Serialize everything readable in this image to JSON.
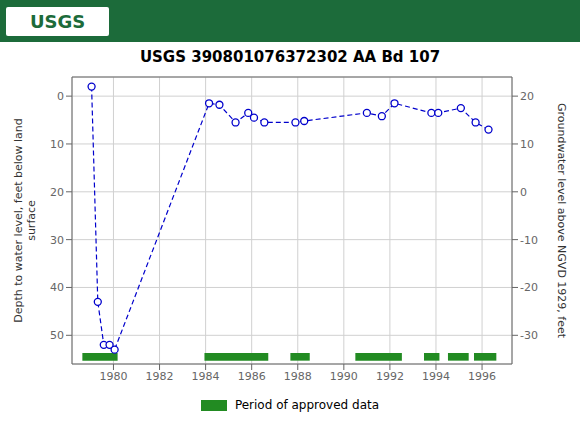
{
  "chart_data": {
    "type": "line",
    "title": "USGS 390801076372302 AA Bd 107",
    "annotations": [
      "USGS"
    ],
    "ylabel": "Depth to water level, feet below land\nsurface",
    "y2label": "Groundwater level above NGVD 1929, feet",
    "x": [
      1979.05,
      1979.32,
      1979.58,
      1979.83,
      1980.05,
      1984.15,
      1984.6,
      1985.3,
      1985.85,
      1986.1,
      1986.55,
      1987.9,
      1988.28,
      1991.0,
      1991.65,
      1992.2,
      1993.8,
      1994.1,
      1995.08,
      1995.72,
      1996.28
    ],
    "series": [
      {
        "values": [
          -2,
          43,
          52,
          52,
          53,
          1.5,
          1.8,
          5.5,
          3.5,
          4.5,
          5.5,
          5.5,
          5.2,
          3.5,
          4.2,
          1.5,
          3.5,
          3.5,
          2.5,
          5.5,
          7.0
        ],
        "color": "#0000cc",
        "line_style": "dashed",
        "marker": "open circle"
      },
      {
        "name": "Period of approved data",
        "type": "bar",
        "color": "#228B22",
        "ranges": [
          [
            1978.65,
            1980.18
          ],
          [
            1983.95,
            1986.72
          ],
          [
            1987.68,
            1988.52
          ],
          [
            1990.5,
            1992.52
          ],
          [
            1993.48,
            1994.15
          ],
          [
            1994.52,
            1995.42
          ],
          [
            1995.65,
            1996.62
          ]
        ],
        "y": 54.5,
        "height": 1.6
      }
    ],
    "xlim": [
      1978.2,
      1997.3
    ],
    "xticks": [
      1980,
      1982,
      1984,
      1986,
      1988,
      1990,
      1992,
      1994,
      1996
    ],
    "ylim": [
      56,
      -4
    ],
    "yticks": [
      0,
      10,
      20,
      30,
      40,
      50
    ],
    "y2lim": [
      -36,
      24
    ],
    "y2ticks": [
      20,
      10,
      0,
      -10,
      -20,
      -30
    ],
    "grid": true
  }
}
